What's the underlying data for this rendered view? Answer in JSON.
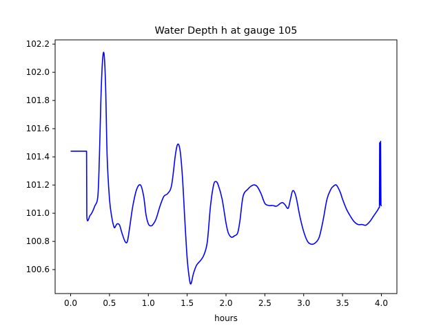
{
  "chart_data": {
    "type": "line",
    "title": "Water Depth h at gauge 105",
    "xlabel": "hours",
    "ylabel": "",
    "xlim": [
      -0.2,
      4.2
    ],
    "ylim": [
      100.43,
      102.23
    ],
    "xticks": [
      0.0,
      0.5,
      1.0,
      1.5,
      2.0,
      2.5,
      3.0,
      3.5,
      4.0
    ],
    "xtick_labels": [
      "0.0",
      "0.5",
      "1.0",
      "1.5",
      "2.0",
      "2.5",
      "3.0",
      "3.5",
      "4.0"
    ],
    "yticks": [
      100.6,
      100.8,
      101.0,
      101.2,
      101.4,
      101.6,
      101.8,
      102.0,
      102.2
    ],
    "ytick_labels": [
      "100.6",
      "100.8",
      "101.0",
      "101.2",
      "101.4",
      "101.6",
      "101.8",
      "102.0",
      "102.2"
    ],
    "grid": false,
    "legend": "none",
    "series": [
      {
        "color": "#0000ff",
        "x": [
          0.0,
          0.2,
          0.205,
          0.208,
          0.25,
          0.28,
          0.31,
          0.35,
          0.37,
          0.39,
          0.41,
          0.43,
          0.45,
          0.47,
          0.5,
          0.53,
          0.56,
          0.58,
          0.6,
          0.63,
          0.66,
          0.7,
          0.73,
          0.76,
          0.8,
          0.85,
          0.9,
          0.94,
          0.97,
          1.0,
          1.03,
          1.06,
          1.1,
          1.15,
          1.2,
          1.25,
          1.3,
          1.35,
          1.38,
          1.41,
          1.44,
          1.47,
          1.5,
          1.53,
          1.55,
          1.58,
          1.62,
          1.68,
          1.72,
          1.76,
          1.8,
          1.84,
          1.87,
          1.9,
          1.95,
          2.0,
          2.03,
          2.07,
          2.11,
          2.15,
          2.18,
          2.22,
          2.28,
          2.35,
          2.4,
          2.45,
          2.5,
          2.55,
          2.6,
          2.65,
          2.7,
          2.73,
          2.76,
          2.8,
          2.83,
          2.86,
          2.9,
          2.95,
          3.0,
          3.05,
          3.1,
          3.15,
          3.2,
          3.25,
          3.3,
          3.35,
          3.38,
          3.42,
          3.47,
          3.5,
          3.55,
          3.6,
          3.65,
          3.7,
          3.75,
          3.8,
          3.85,
          3.9,
          3.95,
          3.97,
          3.975,
          3.978,
          3.983,
          3.99,
          3.995,
          4.0
        ],
        "values": [
          101.44,
          101.44,
          101.44,
          100.98,
          100.985,
          101.01,
          101.05,
          101.12,
          101.4,
          101.82,
          102.08,
          102.13,
          101.9,
          101.4,
          101.1,
          100.97,
          100.9,
          100.91,
          100.925,
          100.915,
          100.86,
          100.8,
          100.8,
          100.9,
          101.05,
          101.17,
          101.2,
          101.12,
          100.99,
          100.925,
          100.91,
          100.92,
          100.96,
          101.05,
          101.12,
          101.14,
          101.2,
          101.42,
          101.49,
          101.44,
          101.25,
          100.95,
          100.68,
          100.53,
          100.5,
          100.57,
          100.63,
          100.67,
          100.71,
          100.8,
          101.05,
          101.2,
          101.225,
          101.2,
          101.1,
          100.93,
          100.86,
          100.83,
          100.84,
          100.86,
          100.95,
          101.12,
          101.17,
          101.2,
          101.19,
          101.14,
          101.07,
          101.055,
          101.055,
          101.05,
          101.07,
          101.075,
          101.06,
          101.035,
          101.1,
          101.16,
          101.12,
          100.98,
          100.87,
          100.8,
          100.78,
          100.79,
          100.83,
          100.95,
          101.1,
          101.17,
          101.19,
          101.2,
          101.15,
          101.1,
          101.03,
          100.98,
          100.94,
          100.92,
          100.92,
          100.915,
          100.94,
          100.98,
          101.02,
          101.04,
          101.04,
          101.5,
          101.06,
          101.51,
          101.06,
          101.05
        ]
      }
    ]
  }
}
